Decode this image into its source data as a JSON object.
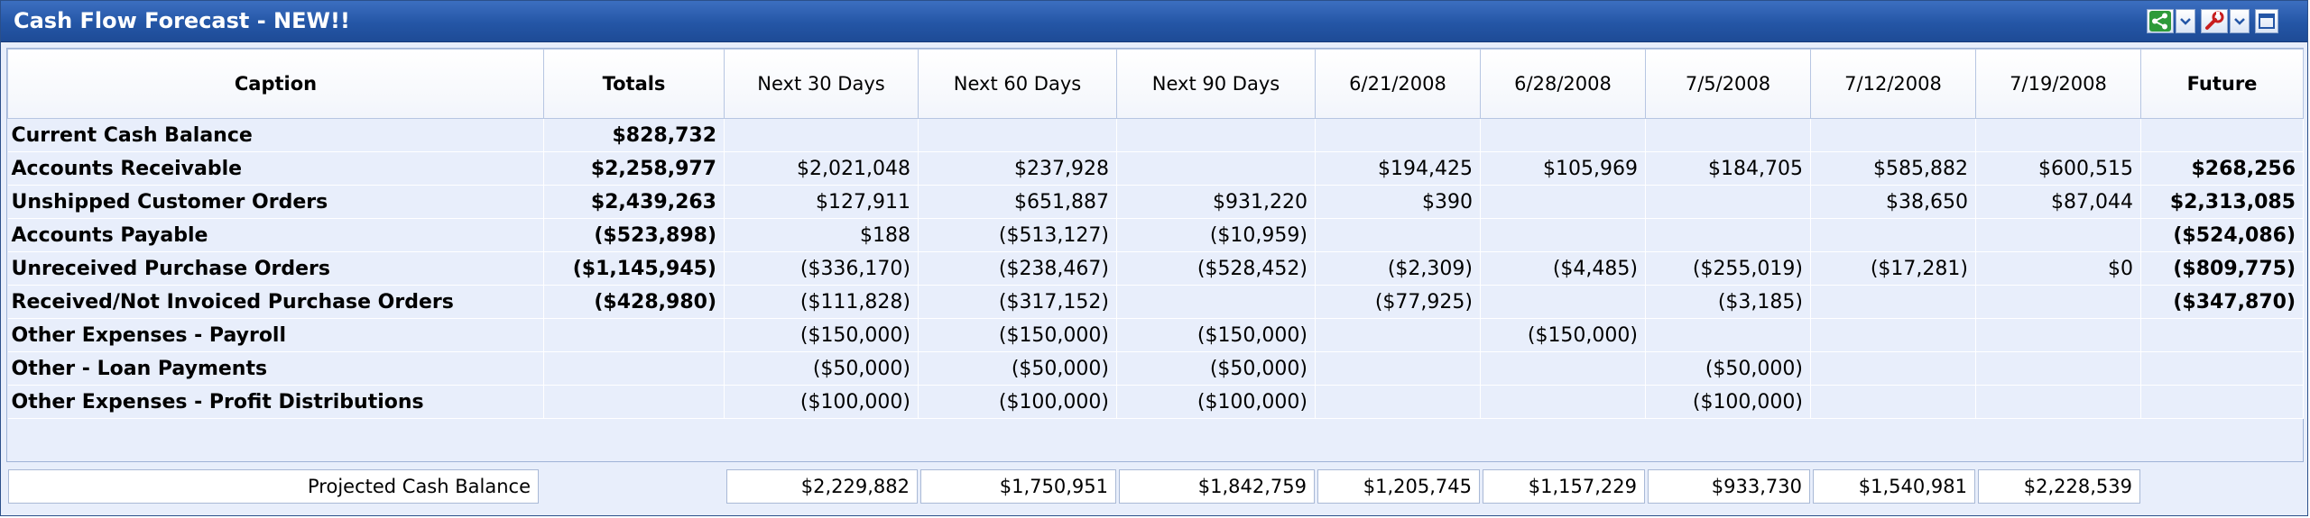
{
  "window": {
    "title": "Cash Flow Forecast - NEW!!"
  },
  "toolbar": {
    "icons": [
      "share-icon",
      "dropdown-icon",
      "tools-icon",
      "dropdown-icon",
      "maximize-icon"
    ],
    "colors": {
      "share": "#2e9a3a",
      "tools": "#c81e1e"
    }
  },
  "columns": [
    "Caption",
    "Totals",
    "Next 30 Days",
    "Next 60 Days",
    "Next 90 Days",
    "6/21/2008",
    "6/28/2008",
    "7/5/2008",
    "7/12/2008",
    "7/19/2008",
    "Future"
  ],
  "rows": [
    {
      "caption": "Current Cash Balance",
      "totals": "$828,732",
      "n30": "",
      "n60": "",
      "n90": "",
      "d0621": "",
      "d0628": "",
      "d0705": "",
      "d0712": "",
      "d0719": "",
      "future": ""
    },
    {
      "caption": "Accounts Receivable",
      "totals": "$2,258,977",
      "n30": "$2,021,048",
      "n60": "$237,928",
      "n90": "",
      "d0621": "$194,425",
      "d0628": "$105,969",
      "d0705": "$184,705",
      "d0712": "$585,882",
      "d0719": "$600,515",
      "future": "$268,256"
    },
    {
      "caption": "Unshipped Customer Orders",
      "totals": "$2,439,263",
      "n30": "$127,911",
      "n60": "$651,887",
      "n90": "$931,220",
      "d0621": "$390",
      "d0628": "",
      "d0705": "",
      "d0712": "$38,650",
      "d0719": "$87,044",
      "future": "$2,313,085"
    },
    {
      "caption": "Accounts Payable",
      "totals": "($523,898)",
      "n30": "$188",
      "n60": "($513,127)",
      "n90": "($10,959)",
      "d0621": "",
      "d0628": "",
      "d0705": "",
      "d0712": "",
      "d0719": "",
      "future": "($524,086)"
    },
    {
      "caption": "Unreceived Purchase Orders",
      "totals": "($1,145,945)",
      "n30": "($336,170)",
      "n60": "($238,467)",
      "n90": "($528,452)",
      "d0621": "($2,309)",
      "d0628": "($4,485)",
      "d0705": "($255,019)",
      "d0712": "($17,281)",
      "d0719": "$0",
      "future": "($809,775)"
    },
    {
      "caption": "Received/Not Invoiced Purchase Orders",
      "totals": "($428,980)",
      "n30": "($111,828)",
      "n60": "($317,152)",
      "n90": "",
      "d0621": "($77,925)",
      "d0628": "",
      "d0705": "($3,185)",
      "d0712": "",
      "d0719": "",
      "future": "($347,870)"
    },
    {
      "caption": "Other Expenses - Payroll",
      "totals": "",
      "n30": "($150,000)",
      "n60": "($150,000)",
      "n90": "($150,000)",
      "d0621": "",
      "d0628": "($150,000)",
      "d0705": "",
      "d0712": "",
      "d0719": "",
      "future": ""
    },
    {
      "caption": "Other - Loan Payments",
      "totals": "",
      "n30": "($50,000)",
      "n60": "($50,000)",
      "n90": "($50,000)",
      "d0621": "",
      "d0628": "",
      "d0705": "($50,000)",
      "d0712": "",
      "d0719": "",
      "future": ""
    },
    {
      "caption": "Other Expenses - Profit Distributions",
      "totals": "",
      "n30": "($100,000)",
      "n60": "($100,000)",
      "n90": "($100,000)",
      "d0621": "",
      "d0628": "",
      "d0705": "($100,000)",
      "d0712": "",
      "d0719": "",
      "future": ""
    }
  ],
  "footer": {
    "caption": "Projected Cash Balance",
    "n30": "$2,229,882",
    "n60": "$1,750,951",
    "n90": "$1,842,759",
    "d0621": "$1,205,745",
    "d0628": "$1,157,229",
    "d0705": "$933,730",
    "d0712": "$1,540,981",
    "d0719": "$2,228,539"
  }
}
